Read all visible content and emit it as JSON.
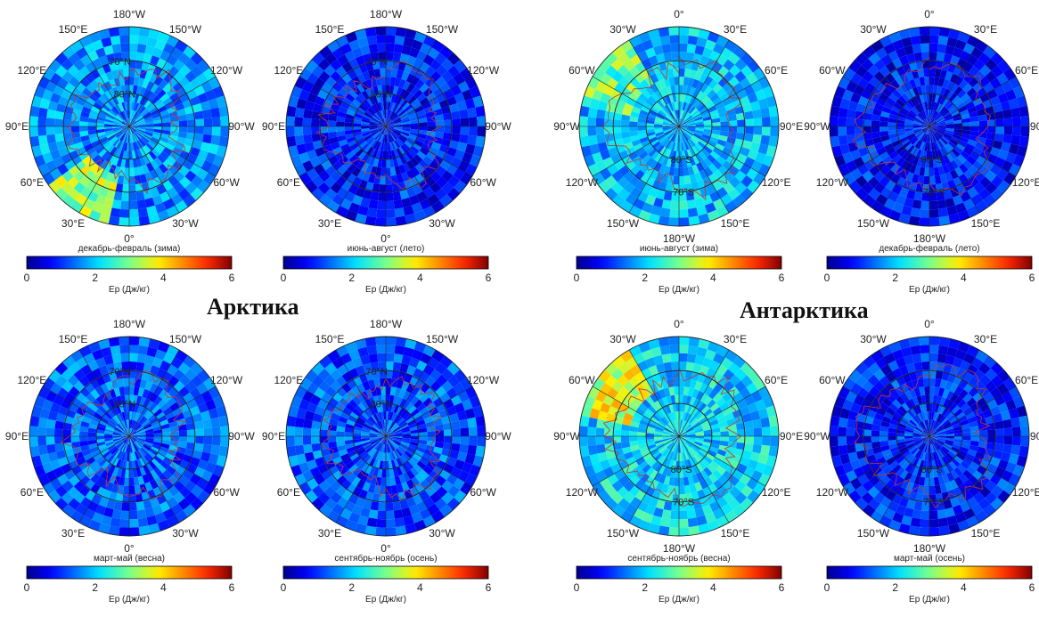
{
  "regions": [
    {
      "title": "Арктика"
    },
    {
      "title": "Антарктика"
    }
  ],
  "chart_data": [
    {
      "type": "heatmap",
      "projection": "polar",
      "hemisphere": "north",
      "region": "Арктика",
      "season_label": "декабрь-февраль  (зима)",
      "colorbar": {
        "label": "Ep (Дж/кг)",
        "min": 0,
        "max": 6,
        "ticks": [
          0,
          2,
          4,
          6
        ]
      },
      "lat_labels": [
        "70°N",
        "80°N"
      ],
      "lon_labels": [
        "180°W",
        "150°W",
        "120°W",
        "90°W",
        "60°W",
        "30°W",
        "0°",
        "30°E",
        "60°E",
        "90°E",
        "120°E",
        "150°E"
      ],
      "lon_angles": [
        0,
        30,
        60,
        90,
        120,
        150,
        180,
        210,
        240,
        270,
        300,
        330
      ],
      "ring_labels": [
        "70°N",
        "80°N"
      ],
      "level": 1.6,
      "hot_sector": [
        195,
        235
      ],
      "hot_level": 3.2
    },
    {
      "type": "heatmap",
      "projection": "polar",
      "hemisphere": "north",
      "region": "Арктика",
      "season_label": "июнь-август  (лето)",
      "colorbar": {
        "label": "Ep (Дж/кг)",
        "min": 0,
        "max": 6,
        "ticks": [
          0,
          2,
          4,
          6
        ]
      },
      "lon_labels": [
        "180°W",
        "150°W",
        "120°W",
        "90°W",
        "60°W",
        "30°W",
        "0°",
        "30°E",
        "60°E",
        "90°E",
        "120°E",
        "150°E"
      ],
      "lon_angles": [
        0,
        30,
        60,
        90,
        120,
        150,
        180,
        210,
        240,
        270,
        300,
        330
      ],
      "ring_labels": [
        "70°N",
        "80°N"
      ],
      "level": 0.9,
      "hot_sector": [
        0,
        0
      ],
      "hot_level": 0.9
    },
    {
      "type": "heatmap",
      "projection": "polar",
      "hemisphere": "south",
      "region": "Антарктика",
      "season_label": "июнь-август (зима)",
      "colorbar": {
        "label": "Ep (Дж/кг)",
        "min": 0,
        "max": 6,
        "ticks": [
          0,
          2,
          4,
          6
        ]
      },
      "lon_labels": [
        "0°",
        "30°E",
        "60°E",
        "90°E",
        "120°E",
        "150°E",
        "180°W",
        "150°W",
        "120°W",
        "90°W",
        "60°W",
        "30°W"
      ],
      "lon_angles": [
        0,
        30,
        60,
        90,
        120,
        150,
        180,
        210,
        240,
        270,
        300,
        330
      ],
      "ring_labels": [
        "70°S",
        "80°S"
      ],
      "level": 1.9,
      "hot_sector": [
        285,
        330
      ],
      "hot_level": 2.9
    },
    {
      "type": "heatmap",
      "projection": "polar",
      "hemisphere": "south",
      "region": "Антарктика",
      "season_label": "декабрь-февраль (лето)",
      "colorbar": {
        "label": "Ep (Дж/кг)",
        "min": 0,
        "max": 6,
        "ticks": [
          0,
          2,
          4,
          6
        ]
      },
      "lon_labels": [
        "0°",
        "30°E",
        "60°E",
        "90°E",
        "120°E",
        "150°E",
        "180°W",
        "150°W",
        "120°W",
        "90°W",
        "60°W",
        "30°W"
      ],
      "lon_angles": [
        0,
        30,
        60,
        90,
        120,
        150,
        180,
        210,
        240,
        270,
        300,
        330
      ],
      "ring_labels": [
        "70°S",
        "80°S"
      ],
      "level": 0.8,
      "hot_sector": [
        0,
        0
      ],
      "hot_level": 0.8
    },
    {
      "type": "heatmap",
      "projection": "polar",
      "hemisphere": "north",
      "region": "Арктика",
      "season_label": "март-май  (весна)",
      "colorbar": {
        "label": "Ep (Дж/кг)",
        "min": 0,
        "max": 6,
        "ticks": [
          0,
          2,
          4,
          6
        ]
      },
      "lon_labels": [
        "180°W",
        "150°W",
        "120°W",
        "90°W",
        "60°W",
        "30°W",
        "0°",
        "30°E",
        "60°E",
        "90°E",
        "120°E",
        "150°E"
      ],
      "lon_angles": [
        0,
        30,
        60,
        90,
        120,
        150,
        180,
        210,
        240,
        270,
        300,
        330
      ],
      "ring_labels": [
        "70°N",
        "80°N"
      ],
      "level": 1.3,
      "hot_sector": [
        0,
        0
      ],
      "hot_level": 1.3
    },
    {
      "type": "heatmap",
      "projection": "polar",
      "hemisphere": "north",
      "region": "Арктика",
      "season_label": "сентябрь-ноябрь  (осень)",
      "colorbar": {
        "label": "Ep (Дж/кг)",
        "min": 0,
        "max": 6,
        "ticks": [
          0,
          2,
          4,
          6
        ]
      },
      "lon_labels": [
        "180°W",
        "150°W",
        "120°W",
        "90°W",
        "60°W",
        "30°W",
        "0°",
        "30°E",
        "60°E",
        "90°E",
        "120°E",
        "150°E"
      ],
      "lon_angles": [
        0,
        30,
        60,
        90,
        120,
        150,
        180,
        210,
        240,
        270,
        300,
        330
      ],
      "ring_labels": [
        "70°N",
        "80°N"
      ],
      "level": 1.2,
      "hot_sector": [
        0,
        0
      ],
      "hot_level": 1.2
    },
    {
      "type": "heatmap",
      "projection": "polar",
      "hemisphere": "south",
      "region": "Антарктика",
      "season_label": "сентябрь-ноябрь (весна)",
      "colorbar": {
        "label": "Ep (Дж/кг)",
        "min": 0,
        "max": 6,
        "ticks": [
          0,
          2,
          4,
          6
        ]
      },
      "lon_labels": [
        "0°",
        "30°E",
        "60°E",
        "90°E",
        "120°E",
        "150°E",
        "180°W",
        "150°W",
        "120°W",
        "90°W",
        "60°W",
        "30°W"
      ],
      "lon_angles": [
        0,
        30,
        60,
        90,
        120,
        150,
        180,
        210,
        240,
        270,
        300,
        330
      ],
      "ring_labels": [
        "70°S",
        "80°S"
      ],
      "level": 2.1,
      "hot_sector": [
        285,
        330
      ],
      "hot_level": 3.6
    },
    {
      "type": "heatmap",
      "projection": "polar",
      "hemisphere": "south",
      "region": "Антарктика",
      "season_label": "март-май  (осень)",
      "colorbar": {
        "label": "Ep (Дж/кг)",
        "min": 0,
        "max": 6,
        "ticks": [
          0,
          2,
          4,
          6
        ]
      },
      "lon_labels": [
        "0°",
        "30°E",
        "60°E",
        "90°E",
        "120°E",
        "150°E",
        "180°W",
        "150°W",
        "120°W",
        "90°W",
        "60°W",
        "30°W"
      ],
      "lon_angles": [
        0,
        30,
        60,
        90,
        120,
        150,
        180,
        210,
        240,
        270,
        300,
        330
      ],
      "ring_labels": [
        "70°S",
        "80°S"
      ],
      "level": 0.9,
      "hot_sector": [
        0,
        0
      ],
      "hot_level": 0.9
    }
  ],
  "colors": {
    "rings": "#222222",
    "coast": "#c0392b",
    "text": "#222222"
  }
}
